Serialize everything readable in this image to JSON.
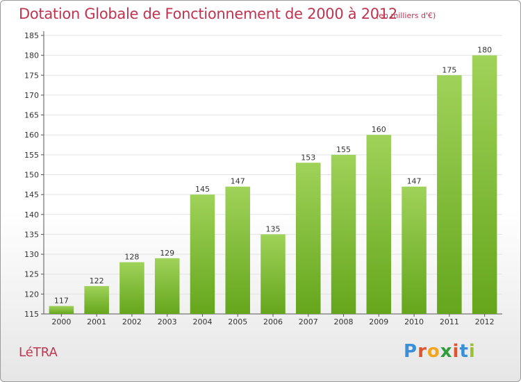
{
  "header": {
    "title": "Dotation Globale de Fonctionnement de 2000 à 2012",
    "unit": "(en milliers d'€)"
  },
  "footer": {
    "commune": "LéTRA",
    "logo_text": "Proxiti"
  },
  "colors": {
    "title": "#c0344f",
    "bar_light": "#9fd259",
    "bar_dark": "#65a61c",
    "grid": "#e3e3e3",
    "logo_letters": [
      "#3a8fd6",
      "#e0552d",
      "#f2a51d",
      "#2f9e3a",
      "#e0552d",
      "#3a8fd6",
      "#9ac22c"
    ]
  },
  "chart_data": {
    "type": "bar",
    "title": "Dotation Globale de Fonctionnement de 2000 à 2012",
    "subtitle": "(en milliers d'€)",
    "categories": [
      "2000",
      "2001",
      "2002",
      "2003",
      "2004",
      "2005",
      "2006",
      "2007",
      "2008",
      "2009",
      "2010",
      "2011",
      "2012"
    ],
    "values": [
      117,
      122,
      128,
      129,
      145,
      147,
      135,
      153,
      155,
      160,
      147,
      175,
      180
    ],
    "ylim": [
      115,
      185
    ],
    "yticks": [
      115,
      120,
      125,
      130,
      135,
      140,
      145,
      150,
      155,
      160,
      165,
      170,
      175,
      180,
      185
    ],
    "grid": true,
    "data_labels": true
  }
}
